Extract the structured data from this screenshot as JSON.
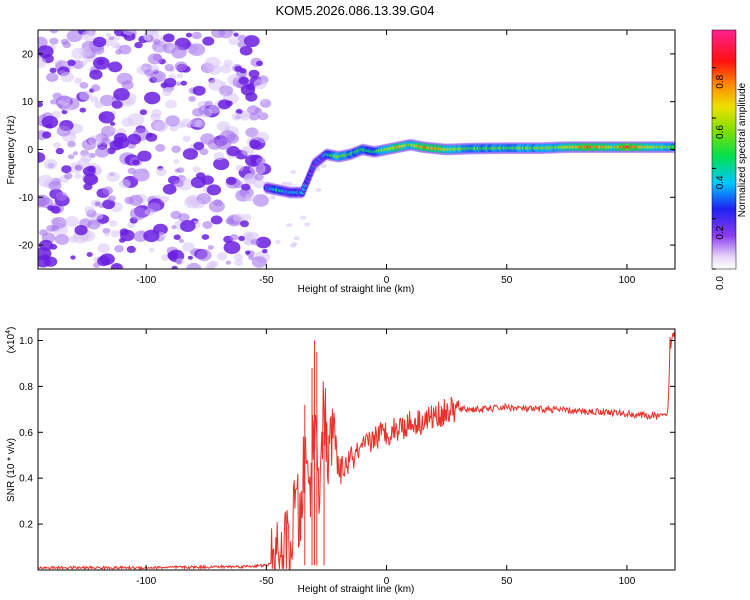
{
  "title": "KOM5.2026.086.13.39.G04",
  "chart_data": [
    {
      "type": "heatmap",
      "name": "spectrogram",
      "xlabel": "Height of straight line (km)",
      "ylabel": "Frequency (Hz)",
      "xlim": [
        -145,
        120
      ],
      "ylim": [
        -25,
        25
      ],
      "x_ticks": [
        -100,
        -50,
        0,
        50,
        100
      ],
      "y_ticks": [
        -20,
        -10,
        0,
        10,
        20
      ],
      "colorbar": {
        "label": "Normalized spectral amplitude",
        "range": [
          0,
          0.95
        ],
        "ticks": [
          0.0,
          0.2,
          0.4,
          0.6,
          0.8
        ]
      },
      "noise_region_x": [
        -145,
        -50
      ],
      "signal_track": [
        {
          "x": -50,
          "f": -8,
          "amp": 0.25
        },
        {
          "x": -45,
          "f": -8.5,
          "amp": 0.45
        },
        {
          "x": -40,
          "f": -9,
          "amp": 0.3
        },
        {
          "x": -35,
          "f": -9,
          "amp": 0.35
        },
        {
          "x": -30,
          "f": -3,
          "amp": 0.2
        },
        {
          "x": -25,
          "f": -1,
          "amp": 0.35
        },
        {
          "x": -20,
          "f": -1.5,
          "amp": 0.55
        },
        {
          "x": -15,
          "f": -1,
          "amp": 0.45
        },
        {
          "x": -10,
          "f": 0,
          "amp": 0.45
        },
        {
          "x": -5,
          "f": -0.5,
          "amp": 0.4
        },
        {
          "x": 0,
          "f": 0,
          "amp": 0.6
        },
        {
          "x": 5,
          "f": 0.5,
          "amp": 0.7
        },
        {
          "x": 10,
          "f": 1,
          "amp": 0.55
        },
        {
          "x": 15,
          "f": 0.5,
          "amp": 0.75
        },
        {
          "x": 25,
          "f": 0,
          "amp": 0.65
        },
        {
          "x": 35,
          "f": 0.2,
          "amp": 0.5
        },
        {
          "x": 50,
          "f": 0.3,
          "amp": 0.5
        },
        {
          "x": 65,
          "f": 0.3,
          "amp": 0.55
        },
        {
          "x": 75,
          "f": 0.5,
          "amp": 0.6
        },
        {
          "x": 85,
          "f": 0.5,
          "amp": 0.8
        },
        {
          "x": 95,
          "f": 0.5,
          "amp": 0.6
        },
        {
          "x": 100,
          "f": 0.5,
          "amp": 0.85
        },
        {
          "x": 110,
          "f": 0.5,
          "amp": 0.6
        },
        {
          "x": 120,
          "f": 0.5,
          "amp": 0.5
        }
      ]
    },
    {
      "type": "line",
      "name": "snr",
      "xlabel": "Height of straight line (km)",
      "ylabel": "SNR (10 * v/v)",
      "y_scale_label": "(x10",
      "y_scale_exp": "4",
      "y_scale_close": ")",
      "xlim": [
        -145,
        120
      ],
      "ylim": [
        0,
        1.05
      ],
      "x_ticks": [
        -100,
        -50,
        0,
        50,
        100
      ],
      "y_ticks": [
        0.2,
        0.4,
        0.6,
        0.8,
        1.0
      ],
      "color": "#e8312a",
      "series": [
        {
          "name": "SNR",
          "x": [
            -145,
            -100,
            -60,
            -50,
            -45,
            -42,
            -40,
            -38,
            -36,
            -34,
            -32,
            -30,
            -28,
            -26,
            -24,
            -22,
            -20,
            -15,
            -10,
            -5,
            0,
            5,
            10,
            15,
            20,
            25,
            30,
            40,
            50,
            60,
            70,
            80,
            90,
            100,
            110,
            117,
            118,
            120
          ],
          "y": [
            0.01,
            0.01,
            0.015,
            0.02,
            0.04,
            0.1,
            0.06,
            0.3,
            0.2,
            0.5,
            0.35,
            0.65,
            0.4,
            0.7,
            0.45,
            0.65,
            0.42,
            0.48,
            0.52,
            0.58,
            0.6,
            0.62,
            0.64,
            0.65,
            0.67,
            0.69,
            0.7,
            0.7,
            0.71,
            0.7,
            0.7,
            0.69,
            0.69,
            0.68,
            0.67,
            0.67,
            1.0,
            1.02
          ]
        }
      ],
      "spikes": [
        {
          "x": -34,
          "y": 0.72
        },
        {
          "x": -31,
          "y": 0.88
        },
        {
          "x": -30,
          "y": 1.0
        },
        {
          "x": -29,
          "y": 0.95
        },
        {
          "x": -26,
          "y": 0.6
        }
      ]
    }
  ]
}
